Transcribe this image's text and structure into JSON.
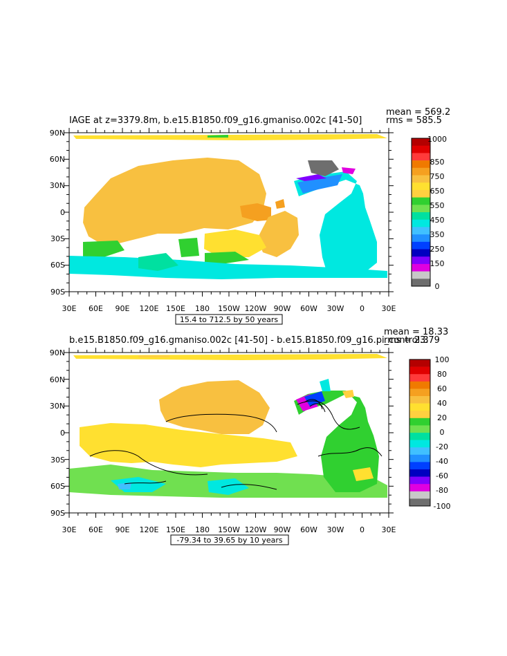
{
  "panels": [
    {
      "title": "IAGE at z=3379.8m, b.e15.B1850.f09_g16.gmaniso.002c [41-50]",
      "mean": "mean = 569.2",
      "rms": "rms = 585.5",
      "info": "15.4 to 712.5 by 50 years",
      "lat_labels": [
        "90N",
        "60N",
        "30N",
        "0",
        "30S",
        "60S",
        "90S"
      ],
      "lon_labels": [
        "30E",
        "60E",
        "90E",
        "120E",
        "150E",
        "180",
        "150W",
        "120W",
        "90W",
        "60W",
        "30W",
        "0",
        "30E"
      ],
      "colorbar_labels": [
        "1000",
        "850",
        "750",
        "650",
        "550",
        "450",
        "350",
        "250",
        "150",
        "0"
      ],
      "colorbar_colors": [
        "#b40000",
        "#e00000",
        "#ff3a3a",
        "#f07a00",
        "#f5a020",
        "#f8c040",
        "#ffe030",
        "#ffd040",
        "#30d030",
        "#70e050",
        "#00e0a0",
        "#00e8e0",
        "#40c0ff",
        "#2090ff",
        "#0040ff",
        "#0000c0",
        "#8000ff",
        "#e000e0",
        "#c8c8c8",
        "#6e6e6e"
      ]
    },
    {
      "title": "b.e15.B1850.f09_g16.gmaniso.002c [41-50] - b.e15.B1850.f09_g16.pi_control.3",
      "mean": "mean = 18.33",
      "rms": "rms = 23.79",
      "info": "-79.34 to 39.65 by 10 years",
      "lat_labels": [
        "90N",
        "60N",
        "30N",
        "0",
        "30S",
        "60S",
        "90S"
      ],
      "lon_labels": [
        "30E",
        "60E",
        "90E",
        "120E",
        "150E",
        "180",
        "150W",
        "120W",
        "90W",
        "60W",
        "30W",
        "0",
        "30E"
      ],
      "colorbar_labels": [
        "100",
        "80",
        "60",
        "40",
        "20",
        "0",
        "-20",
        "-40",
        "-60",
        "-80",
        "-100"
      ],
      "colorbar_colors": [
        "#b40000",
        "#e00000",
        "#ff3a3a",
        "#f07a00",
        "#f5a020",
        "#f8c040",
        "#ffe030",
        "#ffd040",
        "#30d030",
        "#70e050",
        "#00e0a0",
        "#00e8e0",
        "#40c0ff",
        "#2090ff",
        "#0040ff",
        "#0000c0",
        "#8000ff",
        "#e000e0",
        "#c8c8c8",
        "#6e6e6e"
      ]
    }
  ]
}
